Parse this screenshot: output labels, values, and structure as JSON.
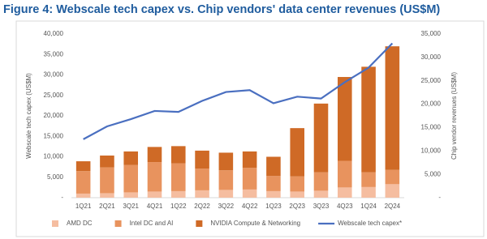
{
  "chart_data": {
    "type": "bar",
    "stacked": true,
    "title": "Figure 4: Webscale tech capex vs. Chip vendors' data center revenues (US$M)",
    "y_label": "Webscale tech capex (US$M)",
    "y2_label": "Chip vendor revenues (US$M)",
    "categories": [
      "1Q21",
      "2Q21",
      "3Q21",
      "4Q21",
      "1Q22",
      "2Q22",
      "3Q22",
      "4Q22",
      "1Q23",
      "2Q23",
      "3Q23",
      "4Q23",
      "1Q24",
      "2Q24"
    ],
    "series": [
      {
        "name": "AMD DC",
        "color": "#f5bda0",
        "values": [
          1000,
          1100,
          1300,
          1500,
          1600,
          1800,
          1900,
          2000,
          1600,
          1500,
          1700,
          2500,
          2600,
          3300
        ]
      },
      {
        "name": "Intel DC and AI",
        "color": "#e8935e",
        "values": [
          5500,
          6300,
          6700,
          7200,
          6800,
          5300,
          4800,
          5300,
          3700,
          3700,
          4500,
          6500,
          3600,
          3500
        ]
      },
      {
        "name": "NVIDIA Compute & Networking",
        "color": "#cf6a26",
        "values": [
          2400,
          2900,
          3300,
          3700,
          4200,
          4400,
          4300,
          4000,
          4700,
          11800,
          16800,
          20500,
          25800,
          30200
        ]
      },
      {
        "name": "Webscale tech capex*",
        "type": "line",
        "axis": "y2",
        "color": "#4a6fc0",
        "values": [
          12500,
          15250,
          16800,
          18550,
          18350,
          20700,
          22600,
          23000,
          20200,
          21600,
          21200,
          24700,
          27800,
          33000
        ]
      }
    ],
    "ylim": [
      0,
      40000
    ],
    "yticks": [
      {
        "value": 0,
        "label": "-"
      },
      {
        "value": 5000,
        "label": "5,000"
      },
      {
        "value": 10000,
        "label": "10,000"
      },
      {
        "value": 15000,
        "label": "15,000"
      },
      {
        "value": 20000,
        "label": "20,000"
      },
      {
        "value": 25000,
        "label": "25,000"
      },
      {
        "value": 30000,
        "label": "30,000"
      },
      {
        "value": 35000,
        "label": "35,000"
      },
      {
        "value": 40000,
        "label": "40,000"
      }
    ],
    "y2lim": [
      0,
      35000
    ],
    "y2ticks": [
      {
        "value": 0,
        "label": "-"
      },
      {
        "value": 5000,
        "label": "5,000"
      },
      {
        "value": 10000,
        "label": "10,000"
      },
      {
        "value": 15000,
        "label": "15,000"
      },
      {
        "value": 20000,
        "label": "20,000"
      },
      {
        "value": 25000,
        "label": "25,000"
      },
      {
        "value": 30000,
        "label": "30,000"
      },
      {
        "value": 35000,
        "label": "35,000"
      }
    ],
    "legend": "bottom"
  }
}
